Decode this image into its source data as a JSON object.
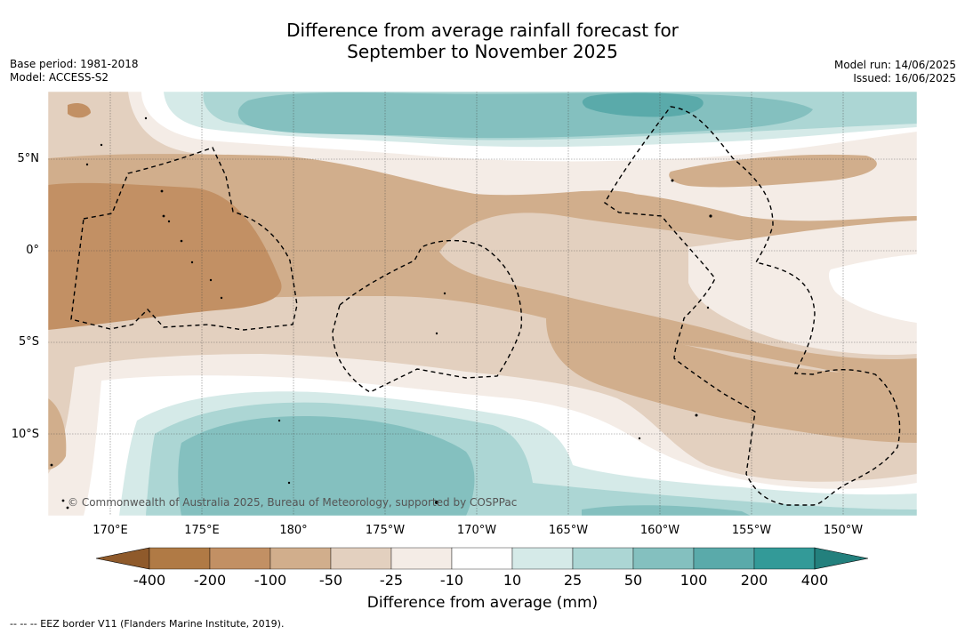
{
  "title_line1": "Difference from average rainfall forecast for",
  "title_line2": "September to November 2025",
  "meta": {
    "base_period": "Base period: 1981-2018",
    "model": "Model: ACCESS-S2",
    "model_run": "Model run: 14/06/2025",
    "issued": "Issued: 16/06/2025"
  },
  "lat_labels": [
    "5°N",
    "0°",
    "5°S",
    "10°S"
  ],
  "lon_labels": [
    "170°E",
    "175°E",
    "180°",
    "175°W",
    "170°W",
    "165°W",
    "160°W",
    "155°W",
    "150°W"
  ],
  "copyright": "© Commonwealth of Australia 2025, Bureau of Meteorology, supported by COSPPac",
  "colorbar": {
    "title": "Difference from average (mm)",
    "ticks": [
      "-400",
      "-200",
      "-100",
      "-50",
      "-25",
      "-10",
      "10",
      "25",
      "50",
      "100",
      "200",
      "400"
    ],
    "colors": [
      "#8f5a2b",
      "#b07a45",
      "#c29064",
      "#d1ae8c",
      "#e3d0bf",
      "#f4ece6",
      "#ffffff",
      "#d5eae8",
      "#acd6d4",
      "#84c0bf",
      "#5aaaaa",
      "#339a98",
      "#23807d"
    ]
  },
  "footnote": "--  --  -- EEZ border V11 (Flanders Marine Institute, 2019)."
}
